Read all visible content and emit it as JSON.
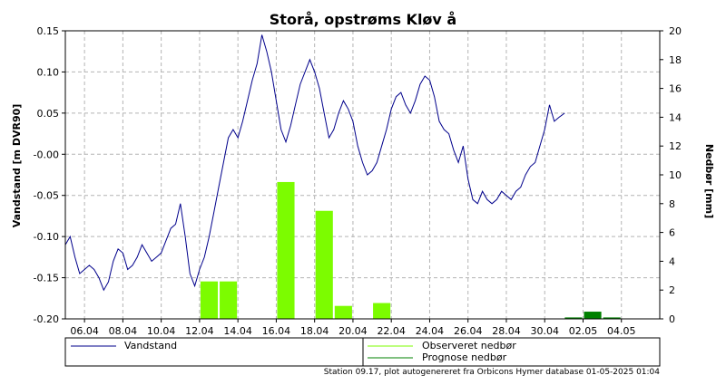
{
  "chart_data": {
    "type": "bar+line",
    "title": "Storå, opstrøms Kløv å",
    "ylabel_left": "Vandstand [m DVR90]",
    "ylabel_right": "Nedbør [mm]",
    "ylim_left": [
      -0.2,
      0.15
    ],
    "ylim_right": [
      0,
      20
    ],
    "y_ticks_left": [
      "0.15",
      "0.10",
      "0.05",
      "-0.00",
      "-0.05",
      "-0.10",
      "-0.15",
      "-0.20"
    ],
    "y_ticks_left_values": [
      0.15,
      0.1,
      0.05,
      0.0,
      -0.05,
      -0.1,
      -0.15,
      -0.2
    ],
    "y_ticks_right": [
      "20",
      "18",
      "16",
      "14",
      "12",
      "10",
      "8",
      "6",
      "4",
      "2",
      "0"
    ],
    "y_ticks_right_values": [
      20,
      18,
      16,
      14,
      12,
      10,
      8,
      6,
      4,
      2,
      0
    ],
    "x_range": [
      "2025-04-05T00:00",
      "2025-05-06T00:00"
    ],
    "x_ticks": [
      {
        "date": "2025-04-06",
        "label": "06.04"
      },
      {
        "date": "2025-04-08",
        "label": "08.04"
      },
      {
        "date": "2025-04-10",
        "label": "10.04"
      },
      {
        "date": "2025-04-12",
        "label": "12.04"
      },
      {
        "date": "2025-04-14",
        "label": "14.04"
      },
      {
        "date": "2025-04-16",
        "label": "16.04"
      },
      {
        "date": "2025-04-18",
        "label": "18.04"
      },
      {
        "date": "2025-04-20",
        "label": "20.04"
      },
      {
        "date": "2025-04-22",
        "label": "22.04"
      },
      {
        "date": "2025-04-24",
        "label": "24.04"
      },
      {
        "date": "2025-04-26",
        "label": "26.04"
      },
      {
        "date": "2025-04-28",
        "label": "28.04"
      },
      {
        "date": "2025-04-30",
        "label": "30.04"
      },
      {
        "date": "2025-05-02",
        "label": "02.05"
      },
      {
        "date": "2025-05-04",
        "label": "04.05"
      }
    ],
    "grid": true,
    "series": [
      {
        "name": "Vandstand",
        "kind": "line",
        "axis": "left",
        "color": "#00008b",
        "points": [
          [
            "2025-04-05T00:00",
            -0.11
          ],
          [
            "2025-04-05T06:00",
            -0.1
          ],
          [
            "2025-04-05T12:00",
            -0.125
          ],
          [
            "2025-04-05T18:00",
            -0.145
          ],
          [
            "2025-04-06T00:00",
            -0.14
          ],
          [
            "2025-04-06T06:00",
            -0.135
          ],
          [
            "2025-04-06T12:00",
            -0.14
          ],
          [
            "2025-04-06T18:00",
            -0.15
          ],
          [
            "2025-04-07T00:00",
            -0.165
          ],
          [
            "2025-04-07T06:00",
            -0.155
          ],
          [
            "2025-04-07T12:00",
            -0.13
          ],
          [
            "2025-04-07T18:00",
            -0.115
          ],
          [
            "2025-04-08T00:00",
            -0.12
          ],
          [
            "2025-04-08T06:00",
            -0.14
          ],
          [
            "2025-04-08T12:00",
            -0.135
          ],
          [
            "2025-04-08T18:00",
            -0.125
          ],
          [
            "2025-04-09T00:00",
            -0.11
          ],
          [
            "2025-04-09T06:00",
            -0.12
          ],
          [
            "2025-04-09T12:00",
            -0.13
          ],
          [
            "2025-04-09T18:00",
            -0.125
          ],
          [
            "2025-04-10T00:00",
            -0.12
          ],
          [
            "2025-04-10T06:00",
            -0.105
          ],
          [
            "2025-04-10T12:00",
            -0.09
          ],
          [
            "2025-04-10T18:00",
            -0.085
          ],
          [
            "2025-04-11T00:00",
            -0.06
          ],
          [
            "2025-04-11T06:00",
            -0.1
          ],
          [
            "2025-04-11T12:00",
            -0.145
          ],
          [
            "2025-04-11T18:00",
            -0.16
          ],
          [
            "2025-04-12T00:00",
            -0.14
          ],
          [
            "2025-04-12T06:00",
            -0.125
          ],
          [
            "2025-04-12T12:00",
            -0.1
          ],
          [
            "2025-04-12T18:00",
            -0.07
          ],
          [
            "2025-04-13T00:00",
            -0.04
          ],
          [
            "2025-04-13T06:00",
            -0.01
          ],
          [
            "2025-04-13T12:00",
            0.02
          ],
          [
            "2025-04-13T18:00",
            0.03
          ],
          [
            "2025-04-14T00:00",
            0.02
          ],
          [
            "2025-04-14T06:00",
            0.04
          ],
          [
            "2025-04-14T12:00",
            0.065
          ],
          [
            "2025-04-14T18:00",
            0.09
          ],
          [
            "2025-04-15T00:00",
            0.11
          ],
          [
            "2025-04-15T06:00",
            0.145
          ],
          [
            "2025-04-15T12:00",
            0.125
          ],
          [
            "2025-04-15T18:00",
            0.1
          ],
          [
            "2025-04-16T00:00",
            0.065
          ],
          [
            "2025-04-16T06:00",
            0.03
          ],
          [
            "2025-04-16T12:00",
            0.015
          ],
          [
            "2025-04-16T18:00",
            0.035
          ],
          [
            "2025-04-17T00:00",
            0.06
          ],
          [
            "2025-04-17T06:00",
            0.085
          ],
          [
            "2025-04-17T12:00",
            0.1
          ],
          [
            "2025-04-17T18:00",
            0.115
          ],
          [
            "2025-04-18T00:00",
            0.1
          ],
          [
            "2025-04-18T06:00",
            0.08
          ],
          [
            "2025-04-18T12:00",
            0.05
          ],
          [
            "2025-04-18T18:00",
            0.02
          ],
          [
            "2025-04-19T00:00",
            0.03
          ],
          [
            "2025-04-19T06:00",
            0.05
          ],
          [
            "2025-04-19T12:00",
            0.065
          ],
          [
            "2025-04-19T18:00",
            0.055
          ],
          [
            "2025-04-20T00:00",
            0.04
          ],
          [
            "2025-04-20T06:00",
            0.01
          ],
          [
            "2025-04-20T12:00",
            -0.01
          ],
          [
            "2025-04-20T18:00",
            -0.025
          ],
          [
            "2025-04-21T00:00",
            -0.02
          ],
          [
            "2025-04-21T06:00",
            -0.01
          ],
          [
            "2025-04-21T12:00",
            0.01
          ],
          [
            "2025-04-21T18:00",
            0.03
          ],
          [
            "2025-04-22T00:00",
            0.055
          ],
          [
            "2025-04-22T06:00",
            0.07
          ],
          [
            "2025-04-22T12:00",
            0.075
          ],
          [
            "2025-04-22T18:00",
            0.06
          ],
          [
            "2025-04-23T00:00",
            0.05
          ],
          [
            "2025-04-23T06:00",
            0.065
          ],
          [
            "2025-04-23T12:00",
            0.085
          ],
          [
            "2025-04-23T18:00",
            0.095
          ],
          [
            "2025-04-24T00:00",
            0.09
          ],
          [
            "2025-04-24T06:00",
            0.07
          ],
          [
            "2025-04-24T12:00",
            0.04
          ],
          [
            "2025-04-24T18:00",
            0.03
          ],
          [
            "2025-04-25T00:00",
            0.025
          ],
          [
            "2025-04-25T06:00",
            0.005
          ],
          [
            "2025-04-25T12:00",
            -0.01
          ],
          [
            "2025-04-25T18:00",
            0.01
          ],
          [
            "2025-04-26T00:00",
            -0.03
          ],
          [
            "2025-04-26T06:00",
            -0.055
          ],
          [
            "2025-04-26T12:00",
            -0.06
          ],
          [
            "2025-04-26T18:00",
            -0.045
          ],
          [
            "2025-04-27T00:00",
            -0.055
          ],
          [
            "2025-04-27T06:00",
            -0.06
          ],
          [
            "2025-04-27T12:00",
            -0.055
          ],
          [
            "2025-04-27T18:00",
            -0.045
          ],
          [
            "2025-04-28T00:00",
            -0.05
          ],
          [
            "2025-04-28T06:00",
            -0.055
          ],
          [
            "2025-04-28T12:00",
            -0.045
          ],
          [
            "2025-04-28T18:00",
            -0.04
          ],
          [
            "2025-04-29T00:00",
            -0.025
          ],
          [
            "2025-04-29T06:00",
            -0.015
          ],
          [
            "2025-04-29T12:00",
            -0.01
          ],
          [
            "2025-04-29T18:00",
            0.01
          ],
          [
            "2025-04-30T00:00",
            0.03
          ],
          [
            "2025-04-30T06:00",
            0.06
          ],
          [
            "2025-04-30T12:00",
            0.04
          ],
          [
            "2025-04-30T18:00",
            0.045
          ],
          [
            "2025-05-01T01:00",
            0.05
          ]
        ]
      },
      {
        "name": "Observeret nedbør",
        "kind": "bar",
        "axis": "right",
        "color": "#7cfc00",
        "bars": [
          {
            "date": "2025-04-12",
            "value": 2.6
          },
          {
            "date": "2025-04-13",
            "value": 2.6
          },
          {
            "date": "2025-04-16",
            "value": 9.5
          },
          {
            "date": "2025-04-18",
            "value": 7.5
          },
          {
            "date": "2025-04-19",
            "value": 0.9
          },
          {
            "date": "2025-04-21",
            "value": 1.1
          }
        ]
      },
      {
        "name": "Prognose nedbør",
        "kind": "bar",
        "axis": "right",
        "color": "#008000",
        "bars": [
          {
            "date": "2025-05-01",
            "value": 0.1
          },
          {
            "date": "2025-05-02",
            "value": 0.5
          },
          {
            "date": "2025-05-03",
            "value": 0.1
          }
        ]
      }
    ]
  },
  "legend": {
    "items": [
      {
        "label": "Vandstand",
        "color": "#00008b"
      },
      {
        "label": "Observeret nedbør",
        "color": "#7cfc00"
      },
      {
        "label": "Prognose nedbør",
        "color": "#008000"
      }
    ]
  },
  "footer": "Station 09.17, plot autogenereret fra Orbicons Hymer database 01-05-2025 01:04"
}
